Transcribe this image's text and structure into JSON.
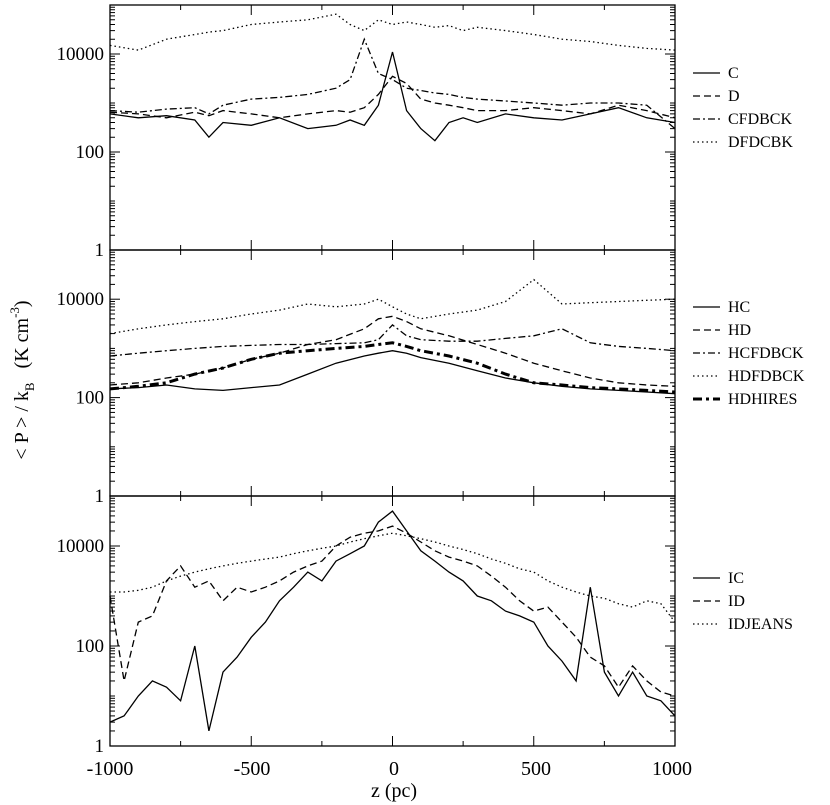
{
  "figure": {
    "xlabel": "z (pc)",
    "ylabel_main": "< P > / k",
    "ylabel_sub": "B",
    "ylabel_unit": "(K cm",
    "ylabel_exp": "-3",
    "ylabel_close": ")",
    "x_ticks": [
      "-1000",
      "-500",
      "0",
      "500",
      "1000"
    ],
    "y_ticks": [
      "1",
      "100",
      "10000"
    ],
    "y_ticks_top": [
      "1",
      "100",
      "10000"
    ]
  },
  "chart_data": [
    {
      "type": "line",
      "panel": "top",
      "title": "",
      "xlabel": "",
      "ylabel": "",
      "xlim": [
        -1000,
        1000
      ],
      "ylim": [
        1,
        100000
      ],
      "yscale": "log",
      "legend_position": "right",
      "x": [
        -1000,
        -900,
        -800,
        -700,
        -650,
        -600,
        -500,
        -400,
        -300,
        -200,
        -150,
        -100,
        -50,
        0,
        50,
        100,
        150,
        200,
        250,
        300,
        400,
        500,
        600,
        700,
        800,
        900,
        1000
      ],
      "series": [
        {
          "name": "C",
          "style": "solid",
          "values": [
            600,
            500,
            550,
            450,
            200,
            400,
            350,
            500,
            300,
            350,
            450,
            350,
            900,
            11000,
            700,
            300,
            170,
            400,
            500,
            400,
            600,
            500,
            450,
            600,
            800,
            500,
            400
          ]
        },
        {
          "name": "D",
          "style": "dashed",
          "values": [
            650,
            600,
            500,
            650,
            550,
            700,
            600,
            500,
            600,
            700,
            650,
            800,
            1500,
            3500,
            2500,
            1200,
            1000,
            900,
            800,
            700,
            700,
            800,
            700,
            600,
            900,
            700,
            500
          ]
        },
        {
          "name": "CFDBCK",
          "style": "dashdot",
          "values": [
            700,
            650,
            750,
            800,
            600,
            900,
            1200,
            1300,
            1500,
            2000,
            3000,
            20000,
            4000,
            3000,
            2000,
            1800,
            1600,
            1500,
            1300,
            1200,
            1100,
            1000,
            900,
            1000,
            1000,
            900,
            300
          ]
        },
        {
          "name": "DFDCBK",
          "style": "dotted",
          "values": [
            15000,
            12000,
            20000,
            25000,
            28000,
            30000,
            40000,
            45000,
            50000,
            65000,
            40000,
            30000,
            50000,
            40000,
            45000,
            40000,
            35000,
            38000,
            30000,
            35000,
            30000,
            25000,
            20000,
            18000,
            15000,
            13000,
            12000
          ]
        }
      ]
    },
    {
      "type": "line",
      "panel": "middle",
      "title": "",
      "xlabel": "",
      "ylabel": "",
      "xlim": [
        -1000,
        1000
      ],
      "ylim": [
        1,
        100000
      ],
      "yscale": "log",
      "legend_position": "right",
      "x": [
        -1000,
        -900,
        -800,
        -700,
        -600,
        -500,
        -400,
        -300,
        -200,
        -100,
        -50,
        0,
        50,
        100,
        200,
        300,
        400,
        500,
        600,
        700,
        800,
        900,
        1000
      ],
      "series": [
        {
          "name": "HC",
          "style": "solid",
          "values": [
            150,
            160,
            180,
            150,
            140,
            160,
            180,
            300,
            500,
            700,
            800,
            900,
            800,
            650,
            500,
            350,
            250,
            200,
            170,
            150,
            140,
            130,
            120
          ]
        },
        {
          "name": "HD",
          "style": "dashed",
          "values": [
            180,
            200,
            250,
            300,
            400,
            600,
            800,
            1200,
            1500,
            2500,
            4000,
            4500,
            3500,
            2500,
            1800,
            1200,
            800,
            500,
            350,
            250,
            200,
            180,
            170
          ]
        },
        {
          "name": "HCFDBCK",
          "style": "dashdot",
          "values": [
            700,
            800,
            900,
            1000,
            1100,
            1150,
            1200,
            1200,
            1250,
            1300,
            1500,
            3000,
            1800,
            1500,
            1400,
            1400,
            1600,
            1800,
            2500,
            1300,
            1100,
            1000,
            900
          ]
        },
        {
          "name": "HDFDBCK",
          "style": "dotted",
          "values": [
            2000,
            2500,
            3000,
            3500,
            4000,
            5000,
            6000,
            8000,
            7000,
            8000,
            10000,
            7000,
            5000,
            4000,
            5000,
            6000,
            9000,
            25000,
            8000,
            8500,
            9000,
            9500,
            10000
          ]
        },
        {
          "name": "HDHIRES",
          "style": "bold-dashdot",
          "values": [
            150,
            170,
            200,
            300,
            400,
            600,
            800,
            900,
            1000,
            1100,
            1200,
            1300,
            1100,
            900,
            700,
            500,
            300,
            200,
            180,
            160,
            150,
            140,
            130
          ]
        }
      ]
    },
    {
      "type": "line",
      "panel": "bottom",
      "title": "",
      "xlabel": "z (pc)",
      "ylabel": "",
      "xlim": [
        -1000,
        1000
      ],
      "ylim": [
        1,
        100000
      ],
      "yscale": "log",
      "legend_position": "right",
      "x": [
        -1000,
        -950,
        -900,
        -850,
        -800,
        -750,
        -700,
        -650,
        -600,
        -550,
        -500,
        -450,
        -400,
        -350,
        -300,
        -250,
        -200,
        -150,
        -100,
        -50,
        0,
        50,
        100,
        150,
        200,
        250,
        300,
        350,
        400,
        450,
        500,
        550,
        600,
        650,
        700,
        750,
        800,
        850,
        900,
        950,
        1000
      ],
      "series": [
        {
          "name": "IC",
          "style": "solid",
          "values": [
            3,
            4,
            10,
            20,
            15,
            8,
            100,
            2,
            30,
            60,
            150,
            300,
            800,
            1500,
            3000,
            2000,
            5000,
            7000,
            10000,
            30000,
            50000,
            20000,
            8000,
            5000,
            3000,
            2000,
            1000,
            800,
            500,
            400,
            300,
            100,
            50,
            20,
            1500,
            30,
            10,
            30,
            10,
            8,
            4
          ]
        },
        {
          "name": "ID",
          "style": "dashed",
          "values": [
            1000,
            20,
            300,
            400,
            2000,
            4000,
            1500,
            2000,
            800,
            1500,
            1200,
            1500,
            2000,
            3000,
            4000,
            5000,
            10000,
            15000,
            18000,
            20000,
            25000,
            18000,
            12000,
            8000,
            6000,
            5000,
            4000,
            2500,
            1500,
            800,
            500,
            600,
            300,
            150,
            60,
            40,
            15,
            40,
            20,
            12,
            10
          ]
        },
        {
          "name": "IDJEANS",
          "style": "dotted",
          "values": [
            1200,
            1200,
            1300,
            1500,
            2000,
            2500,
            3000,
            3500,
            4000,
            4500,
            5000,
            5500,
            6000,
            7000,
            8000,
            9000,
            10000,
            12000,
            14000,
            16000,
            18000,
            16000,
            14000,
            12000,
            10000,
            8500,
            7000,
            5500,
            4500,
            3500,
            3000,
            2000,
            1500,
            1200,
            1000,
            900,
            700,
            600,
            800,
            700,
            300
          ]
        }
      ]
    }
  ]
}
